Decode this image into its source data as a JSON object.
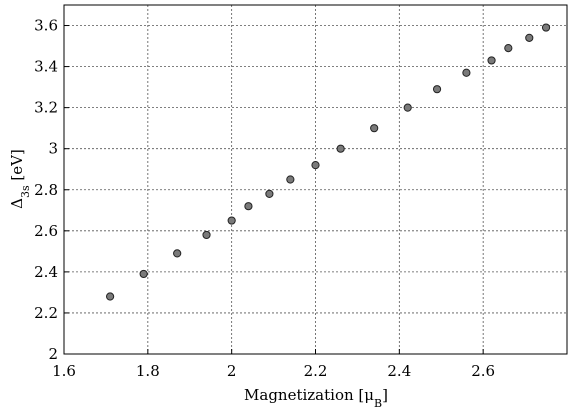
{
  "chart_data": {
    "type": "scatter",
    "xlabel": "Magnetization [μ",
    "xlabel_sub": "B",
    "xlabel_end": "]",
    "ylabel": "Δ",
    "ylabel_sub": "3s",
    "ylabel_end": " [eV]",
    "xlim": [
      1.6,
      2.8
    ],
    "ylim": [
      2.0,
      3.7
    ],
    "x_ticks": [
      1.6,
      1.8,
      2.0,
      2.2,
      2.4,
      2.6
    ],
    "x_tick_labels": [
      "1.6",
      "1.8",
      "2",
      "2.2",
      "2.4",
      "2.6"
    ],
    "y_ticks": [
      2.0,
      2.2,
      2.4,
      2.6,
      2.8,
      3.0,
      3.2,
      3.4,
      3.6
    ],
    "y_tick_labels": [
      "2",
      "2.2",
      "2.4",
      "2.6",
      "2.8",
      "3",
      "3.2",
      "3.4",
      "3.6"
    ],
    "grid": true,
    "marker_color": "#7a7a7a",
    "x": [
      1.71,
      1.79,
      1.87,
      1.94,
      2.0,
      2.04,
      2.09,
      2.14,
      2.2,
      2.26,
      2.34,
      2.42,
      2.49,
      2.56,
      2.62,
      2.66,
      2.71,
      2.75
    ],
    "y": [
      2.28,
      2.39,
      2.49,
      2.58,
      2.65,
      2.72,
      2.78,
      2.85,
      2.92,
      3.0,
      3.1,
      3.2,
      3.29,
      3.37,
      3.43,
      3.49,
      3.54,
      3.59
    ]
  }
}
